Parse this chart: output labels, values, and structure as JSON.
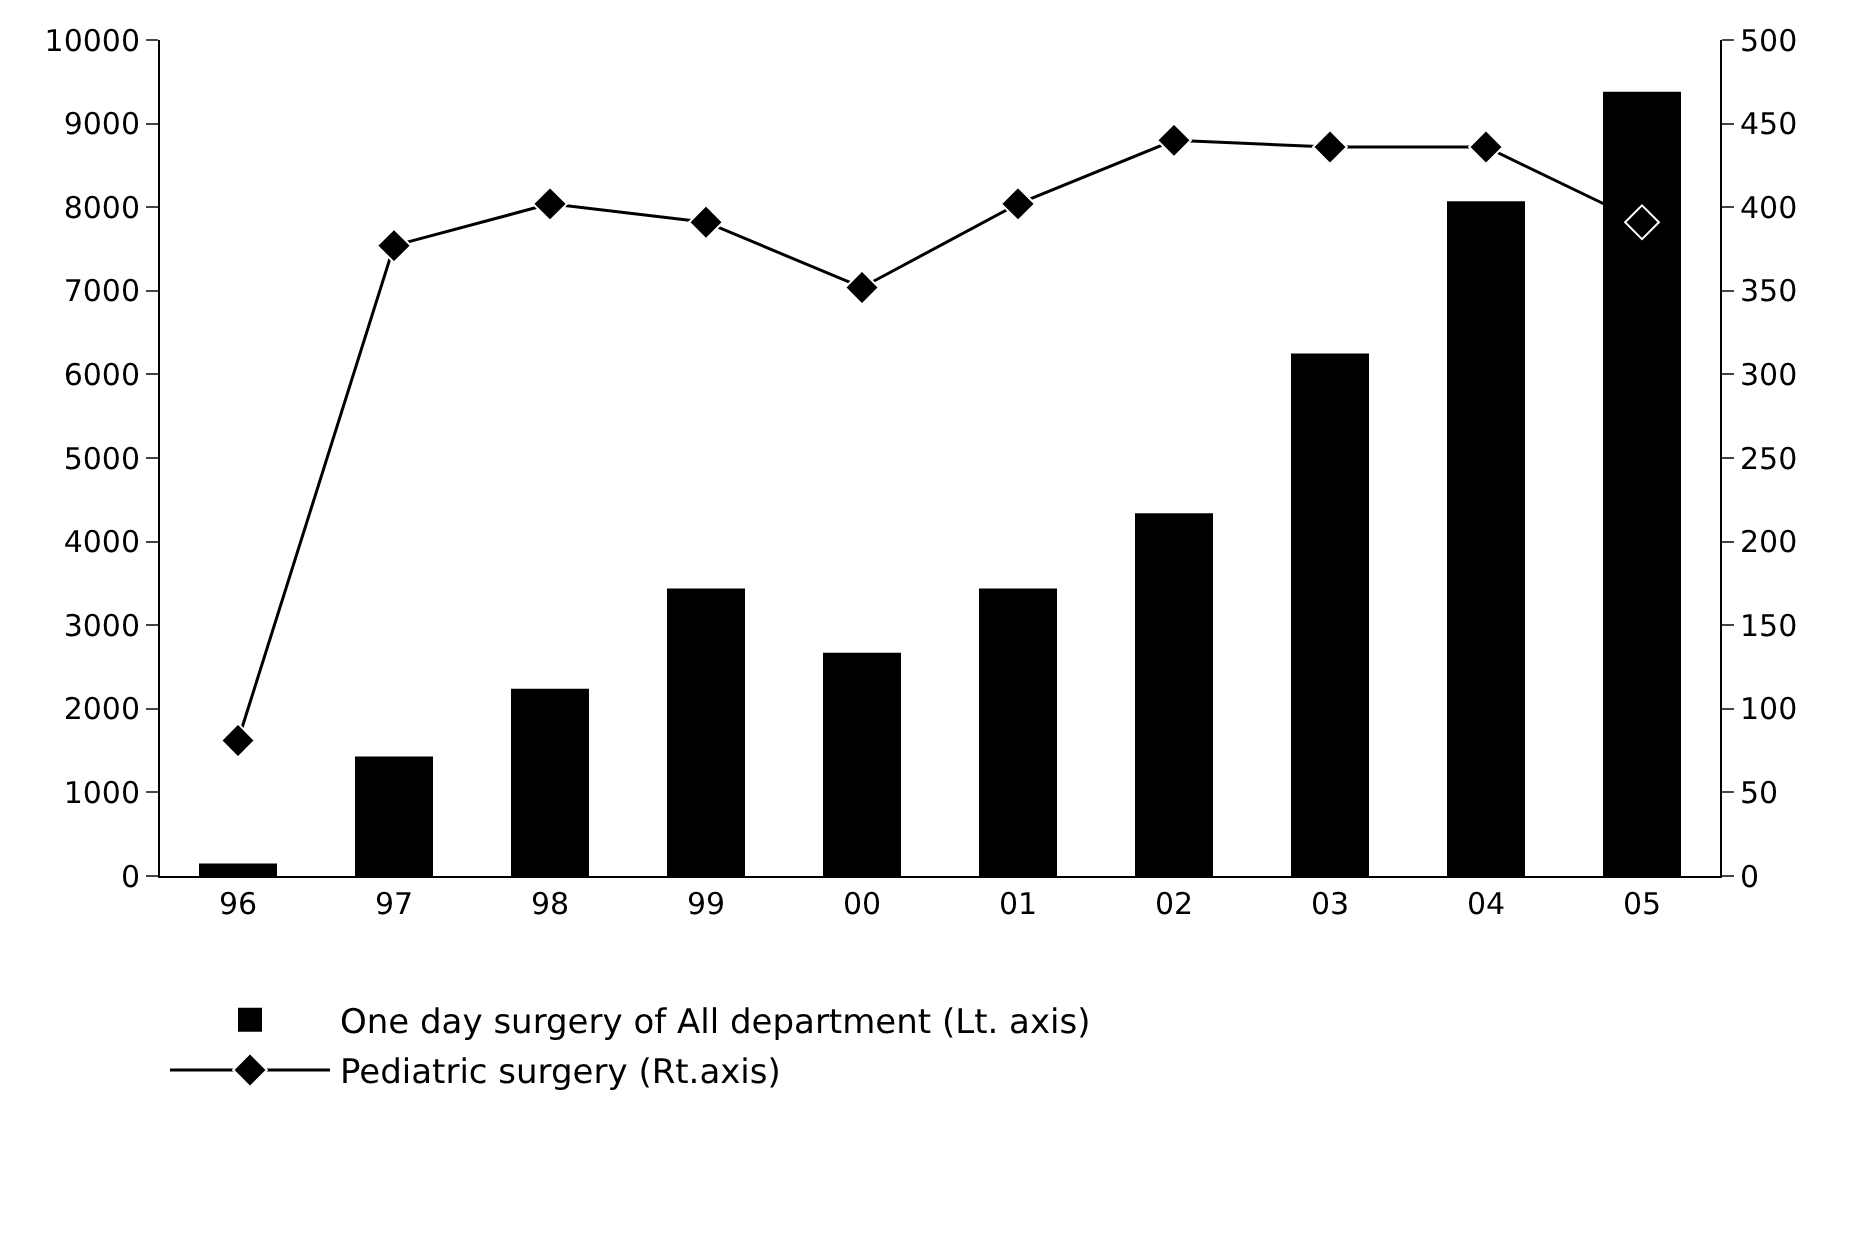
{
  "chart_data": {
    "type": "bar",
    "categories": [
      "96",
      "97",
      "98",
      "99",
      "00",
      "01",
      "02",
      "03",
      "04",
      "05"
    ],
    "series": [
      {
        "name": "One day surgery of All department (Lt. axis)",
        "color": "#000000",
        "values": [
          150,
          1430,
          2240,
          3440,
          2670,
          3440,
          4340,
          6250,
          8070,
          9380
        ]
      },
      {
        "name": "Pediatric surgery (Rt.axis)",
        "type": "line",
        "axis": "y2",
        "color": "#000000",
        "marker": "diamond",
        "line_style": "solid",
        "values": [
          81,
          377,
          402,
          391,
          352,
          402,
          440,
          436,
          436,
          391
        ]
      }
    ],
    "ylim": [
      0,
      10000
    ],
    "yticks": [
      0,
      1000,
      2000,
      3000,
      4000,
      5000,
      6000,
      7000,
      8000,
      9000,
      10000
    ],
    "y2lim": [
      0,
      500
    ],
    "y2ticks": [
      0,
      50,
      100,
      150,
      200,
      250,
      300,
      350,
      400,
      450,
      500
    ],
    "grid": false,
    "legend": "bottom"
  }
}
